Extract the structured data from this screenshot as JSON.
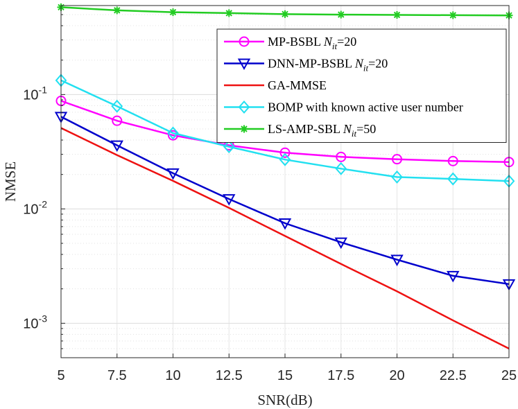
{
  "chart_data": {
    "type": "line",
    "xlabel": "SNR(dB)",
    "ylabel": "NMSE",
    "xlim": [
      5,
      25
    ],
    "ylim": [
      0.0005,
      0.6
    ],
    "yscale": "log",
    "grid": true,
    "legend_position": "top-right",
    "x_ticks": [
      "5",
      "7.5",
      "10",
      "12.5",
      "15",
      "17.5",
      "20",
      "22.5",
      "25"
    ],
    "y_ticks": [
      {
        "value": 0.1,
        "base": "10",
        "exp": "-1"
      },
      {
        "value": 0.01,
        "base": "10",
        "exp": "-2"
      },
      {
        "value": 0.001,
        "base": "10",
        "exp": "-3"
      }
    ],
    "x": [
      5,
      7.5,
      10,
      12.5,
      15,
      17.5,
      20,
      22.5,
      25
    ],
    "series": [
      {
        "name": "MP-BSBL N_it=20",
        "legend_main": "MP-BSBL ",
        "legend_sym": "N",
        "legend_sub": "it",
        "legend_tail": "=20",
        "color": "#ff00ff",
        "marker": "circle",
        "values": [
          0.088,
          0.059,
          0.044,
          0.036,
          0.031,
          0.0285,
          0.0272,
          0.0262,
          0.0257
        ]
      },
      {
        "name": "DNN-MP-BSBL N_it=20",
        "legend_main": "DNN-MP-BSBL ",
        "legend_sym": "N",
        "legend_sub": "it",
        "legend_tail": "=20",
        "color": "#0000cc",
        "marker": "triangle-down",
        "values": [
          0.064,
          0.036,
          0.0205,
          0.0122,
          0.0075,
          0.0051,
          0.0036,
          0.0026,
          0.0022
        ]
      },
      {
        "name": "GA-MMSE",
        "legend_main": "GA-MMSE",
        "legend_sym": "",
        "legend_sub": "",
        "legend_tail": "",
        "color": "#ee1111",
        "marker": "none",
        "values": [
          0.051,
          0.0295,
          0.0176,
          0.0102,
          0.0058,
          0.0033,
          0.0019,
          0.00106,
          0.0006
        ]
      },
      {
        "name": "BOMP with known active user number",
        "legend_main": "BOMP with known active user number",
        "legend_sym": "",
        "legend_sub": "",
        "legend_tail": "",
        "color": "#22e0f0",
        "marker": "diamond",
        "values": [
          0.133,
          0.079,
          0.046,
          0.035,
          0.027,
          0.0225,
          0.019,
          0.0183,
          0.0175
        ]
      },
      {
        "name": "LS-AMP-SBL N_it=50",
        "legend_main": "LS-AMP-SBL ",
        "legend_sym": "N",
        "legend_sub": "it",
        "legend_tail": "=50",
        "color": "#22cc22",
        "marker": "star",
        "values": [
          0.58,
          0.545,
          0.525,
          0.515,
          0.505,
          0.5,
          0.497,
          0.494,
          0.492
        ]
      }
    ]
  }
}
